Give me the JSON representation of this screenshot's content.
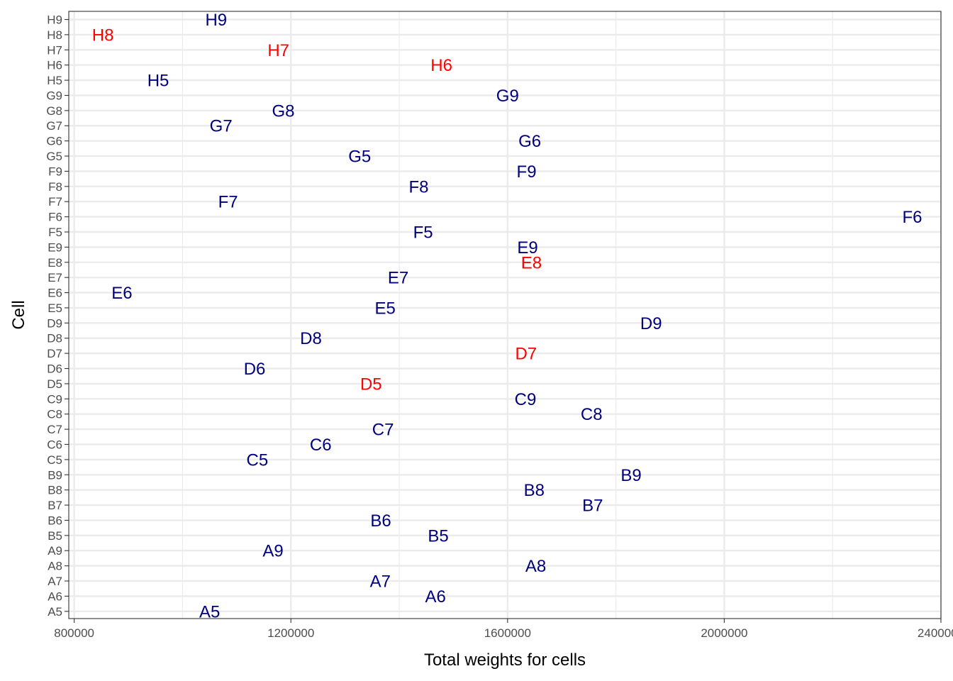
{
  "chart_data": {
    "type": "scatter",
    "title": "",
    "xlabel": "Total weights for cells",
    "ylabel": "Cell",
    "xlim": [
      790000,
      2400000
    ],
    "x_ticks": [
      800000,
      1200000,
      1600000,
      2000000,
      2400000
    ],
    "x_tick_labels": [
      "800000",
      "1200000",
      "1600000",
      "2000000",
      "2400000"
    ],
    "x_minor_ticks": [
      1000000,
      1400000,
      1800000,
      2200000
    ],
    "grid": true,
    "legend": "none",
    "colors": {
      "normal": "#00007f",
      "highlight": "#ff0000"
    },
    "categories": [
      "A5",
      "A6",
      "A7",
      "A8",
      "A9",
      "B5",
      "B6",
      "B7",
      "B8",
      "B9",
      "C5",
      "C6",
      "C7",
      "C8",
      "C9",
      "D5",
      "D6",
      "D7",
      "D8",
      "D9",
      "E5",
      "E6",
      "E7",
      "E8",
      "E9",
      "F5",
      "F6",
      "F7",
      "F8",
      "F9",
      "G5",
      "G6",
      "G7",
      "G8",
      "G9",
      "H5",
      "H6",
      "H7",
      "H8",
      "H9"
    ],
    "points": [
      {
        "label": "A5",
        "x": 1050000,
        "highlight": false
      },
      {
        "label": "A6",
        "x": 1467000,
        "highlight": false
      },
      {
        "label": "A7",
        "x": 1365000,
        "highlight": false
      },
      {
        "label": "A8",
        "x": 1652000,
        "highlight": false
      },
      {
        "label": "A9",
        "x": 1167000,
        "highlight": false
      },
      {
        "label": "B5",
        "x": 1472000,
        "highlight": false
      },
      {
        "label": "B6",
        "x": 1366000,
        "highlight": false
      },
      {
        "label": "B7",
        "x": 1757000,
        "highlight": false
      },
      {
        "label": "B8",
        "x": 1649000,
        "highlight": false
      },
      {
        "label": "B9",
        "x": 1828000,
        "highlight": false
      },
      {
        "label": "C5",
        "x": 1138000,
        "highlight": false
      },
      {
        "label": "C6",
        "x": 1255000,
        "highlight": false
      },
      {
        "label": "C7",
        "x": 1370000,
        "highlight": false
      },
      {
        "label": "C8",
        "x": 1755000,
        "highlight": false
      },
      {
        "label": "C9",
        "x": 1633000,
        "highlight": false
      },
      {
        "label": "D5",
        "x": 1348000,
        "highlight": true
      },
      {
        "label": "D6",
        "x": 1133000,
        "highlight": false
      },
      {
        "label": "D7",
        "x": 1634000,
        "highlight": true
      },
      {
        "label": "D8",
        "x": 1237000,
        "highlight": false
      },
      {
        "label": "D9",
        "x": 1865000,
        "highlight": false
      },
      {
        "label": "E5",
        "x": 1374000,
        "highlight": false
      },
      {
        "label": "E6",
        "x": 888000,
        "highlight": false
      },
      {
        "label": "E7",
        "x": 1398000,
        "highlight": false
      },
      {
        "label": "E8",
        "x": 1644000,
        "highlight": true
      },
      {
        "label": "E9",
        "x": 1637000,
        "highlight": false
      },
      {
        "label": "F5",
        "x": 1444000,
        "highlight": false
      },
      {
        "label": "F6",
        "x": 2347000,
        "highlight": false
      },
      {
        "label": "F7",
        "x": 1084000,
        "highlight": false
      },
      {
        "label": "F8",
        "x": 1436000,
        "highlight": false
      },
      {
        "label": "F9",
        "x": 1635000,
        "highlight": false
      },
      {
        "label": "G5",
        "x": 1327000,
        "highlight": false
      },
      {
        "label": "G6",
        "x": 1641000,
        "highlight": false
      },
      {
        "label": "G7",
        "x": 1071000,
        "highlight": false
      },
      {
        "label": "G8",
        "x": 1186000,
        "highlight": false
      },
      {
        "label": "G9",
        "x": 1600000,
        "highlight": false
      },
      {
        "label": "H5",
        "x": 955000,
        "highlight": false
      },
      {
        "label": "H6",
        "x": 1478000,
        "highlight": true
      },
      {
        "label": "H7",
        "x": 1177000,
        "highlight": true
      },
      {
        "label": "H8",
        "x": 853000,
        "highlight": true
      },
      {
        "label": "H9",
        "x": 1062000,
        "highlight": false
      }
    ]
  }
}
